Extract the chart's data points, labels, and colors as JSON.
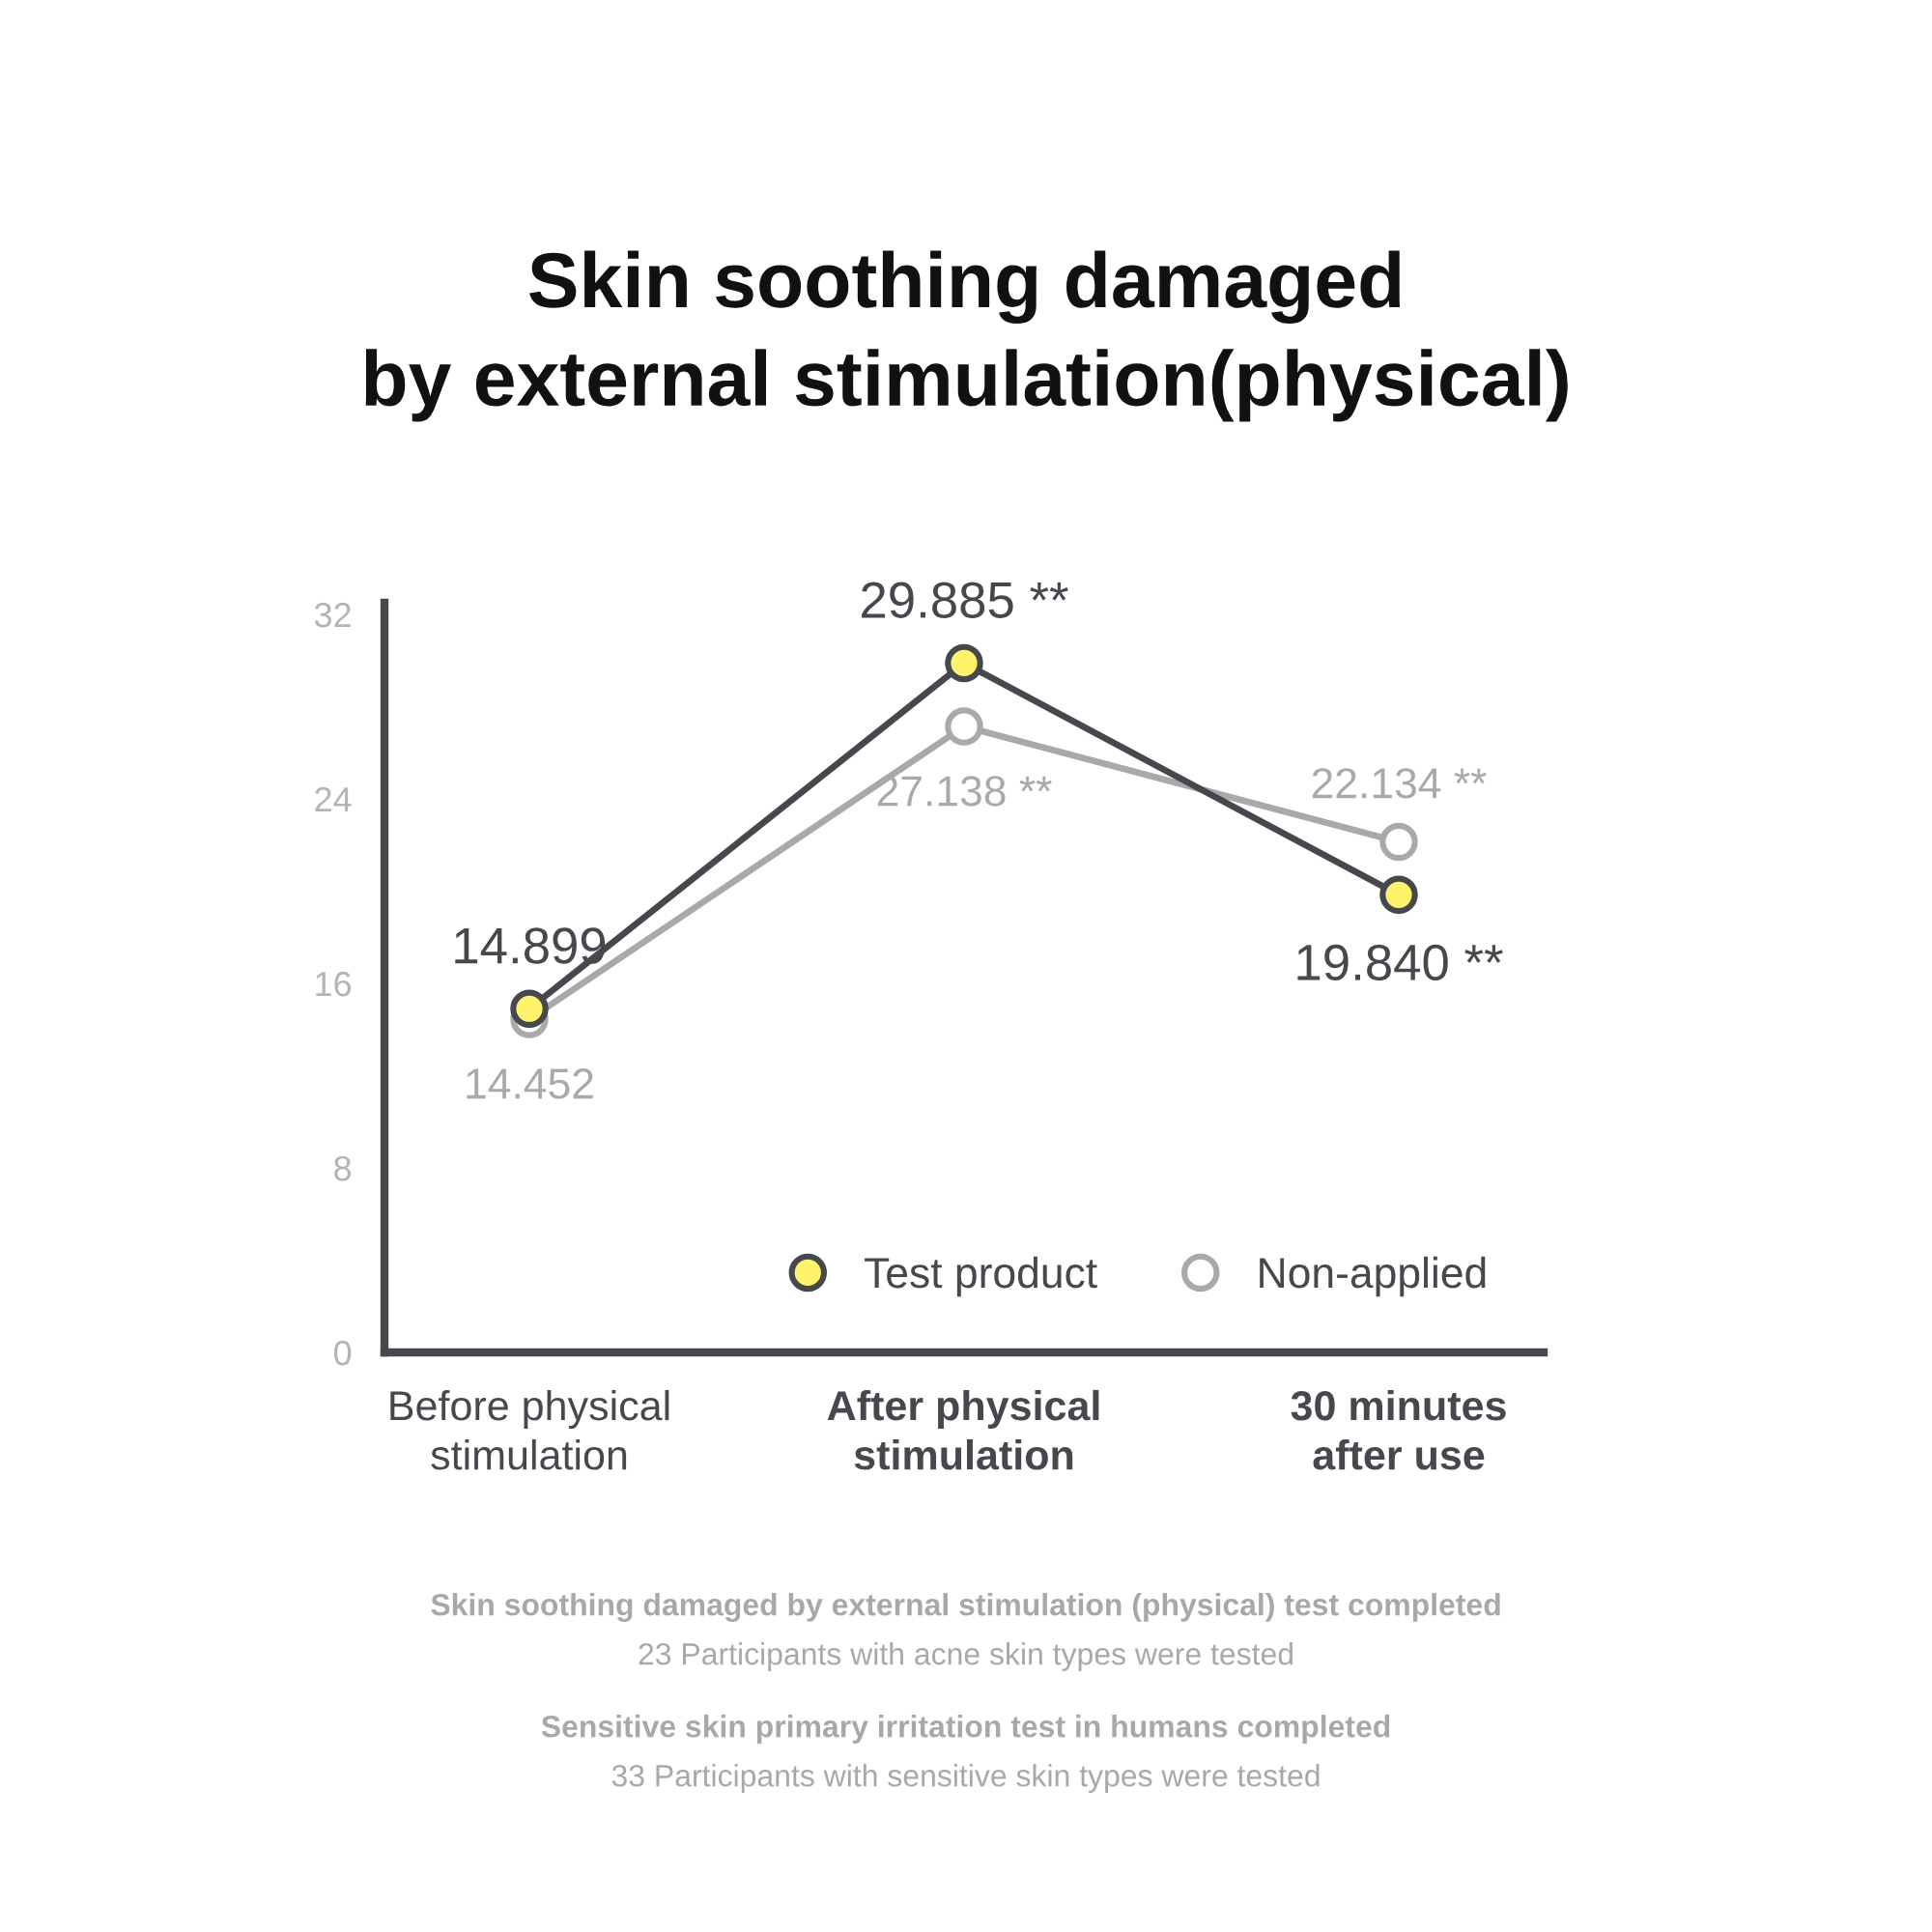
{
  "chart_data": {
    "type": "line",
    "title": "Skin soothing damaged\nby external stimulation(physical)",
    "categories": [
      "Before physical\nstimulation",
      "After physical\nstimulation",
      "30 minutes\nafter use"
    ],
    "series": [
      {
        "name": "Test product",
        "color": "#45484d",
        "colors": [
          "#fff36b",
          "#fff36b",
          "#fff36b"
        ],
        "values": [
          14.899,
          29.885,
          19.84
        ],
        "value_labels": [
          "14.899",
          "29.885 **",
          "19.840 **"
        ]
      },
      {
        "name": "Non-applied",
        "color": "#a9a9a9",
        "colors": [
          "#ffffff",
          "#ffffff",
          "#ffffff"
        ],
        "values": [
          14.452,
          27.138,
          22.134
        ],
        "value_labels": [
          "14.452",
          "27.138 **",
          "22.134 **"
        ]
      }
    ],
    "ylim": [
      0,
      32.5
    ],
    "yticks": [
      0,
      8,
      16,
      24,
      32
    ],
    "grid": false,
    "legend": "bottom right",
    "marker": "circle",
    "line_style": "solid",
    "annotations": [
      "Skin soothing damaged by external stimulation (physical) test completed",
      "23 Participants with acne skin types were tested",
      "Sensitive skin primary irritation test in humans completed",
      "33 Participants with sensitive skin types were tested"
    ]
  }
}
